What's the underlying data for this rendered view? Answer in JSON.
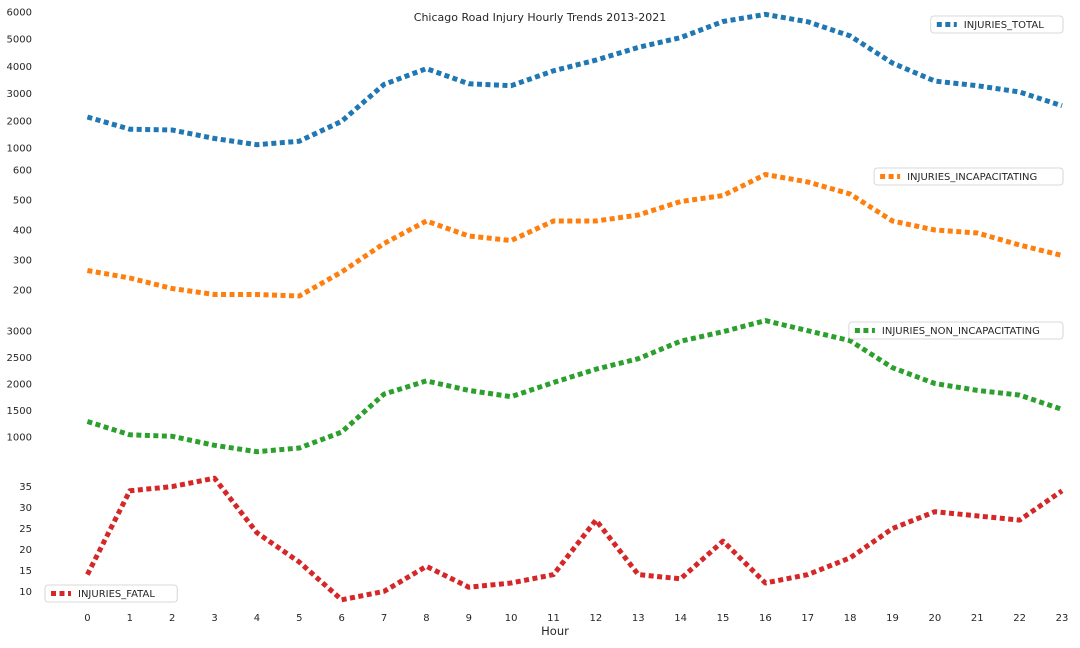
{
  "chart_data": {
    "type": "line",
    "title": "Chicago Road Injury Hourly Trends 2013-2021",
    "xlabel": "Hour",
    "x": [
      0,
      1,
      2,
      3,
      4,
      5,
      6,
      7,
      8,
      9,
      10,
      11,
      12,
      13,
      14,
      15,
      16,
      17,
      18,
      19,
      20,
      21,
      22,
      23
    ],
    "xlim": [
      -1,
      23
    ],
    "grid": false,
    "line_style": "dotted",
    "panels": [
      {
        "series": [
          {
            "name": "INJURIES_TOTAL",
            "color": "#1f77b4",
            "values": [
              2140,
              1690,
              1660,
              1350,
              1120,
              1250,
              1980,
              3340,
              3920,
              3360,
              3290,
              3840,
              4230,
              4700,
              5060,
              5650,
              5910,
              5640,
              5120,
              4120,
              3460,
              3290,
              3060,
              2550
            ]
          }
        ],
        "ylim": [
          1000,
          6000
        ],
        "yticks": [
          1000,
          2000,
          3000,
          4000,
          5000,
          6000
        ],
        "legend_loc": "upper right"
      },
      {
        "series": [
          {
            "name": "INJURIES_INCAPACITATING",
            "color": "#ff7f0e",
            "values": [
              265,
              240,
              205,
              185,
              185,
              180,
              260,
              355,
              430,
              380,
              365,
              430,
              430,
              450,
              495,
              515,
              585,
              560,
              520,
              430,
              400,
              390,
              350,
              315
            ]
          }
        ],
        "ylim": [
          160,
          620
        ],
        "yticks": [
          200,
          300,
          400,
          500,
          600
        ],
        "legend_loc": "upper right"
      },
      {
        "series": [
          {
            "name": "INJURIES_NON_INCAPACITATING",
            "color": "#2ca02c",
            "values": [
              1290,
              1040,
              1010,
              840,
              720,
              790,
              1090,
              1810,
              2060,
              1880,
              1760,
              2030,
              2280,
              2480,
              2810,
              2990,
              3200,
              3010,
              2820,
              2310,
              2010,
              1880,
              1790,
              1520
            ]
          }
        ],
        "ylim": [
          600,
          3250
        ],
        "yticks": [
          1000,
          1500,
          2000,
          2500,
          3000
        ],
        "legend_loc": "upper right"
      },
      {
        "series": [
          {
            "name": "INJURIES_FATAL",
            "color": "#d62728",
            "values": [
              14,
              34,
              35,
              37,
              24,
              17,
              8,
              10,
              16,
              11,
              12,
              14,
              27,
              14,
              13,
              22,
              12,
              14,
              18,
              25,
              29,
              28,
              27,
              34
            ]
          }
        ],
        "ylim": [
          7,
          38
        ],
        "yticks": [
          10,
          15,
          20,
          25,
          30,
          35
        ],
        "legend_loc": "lower left"
      }
    ]
  }
}
